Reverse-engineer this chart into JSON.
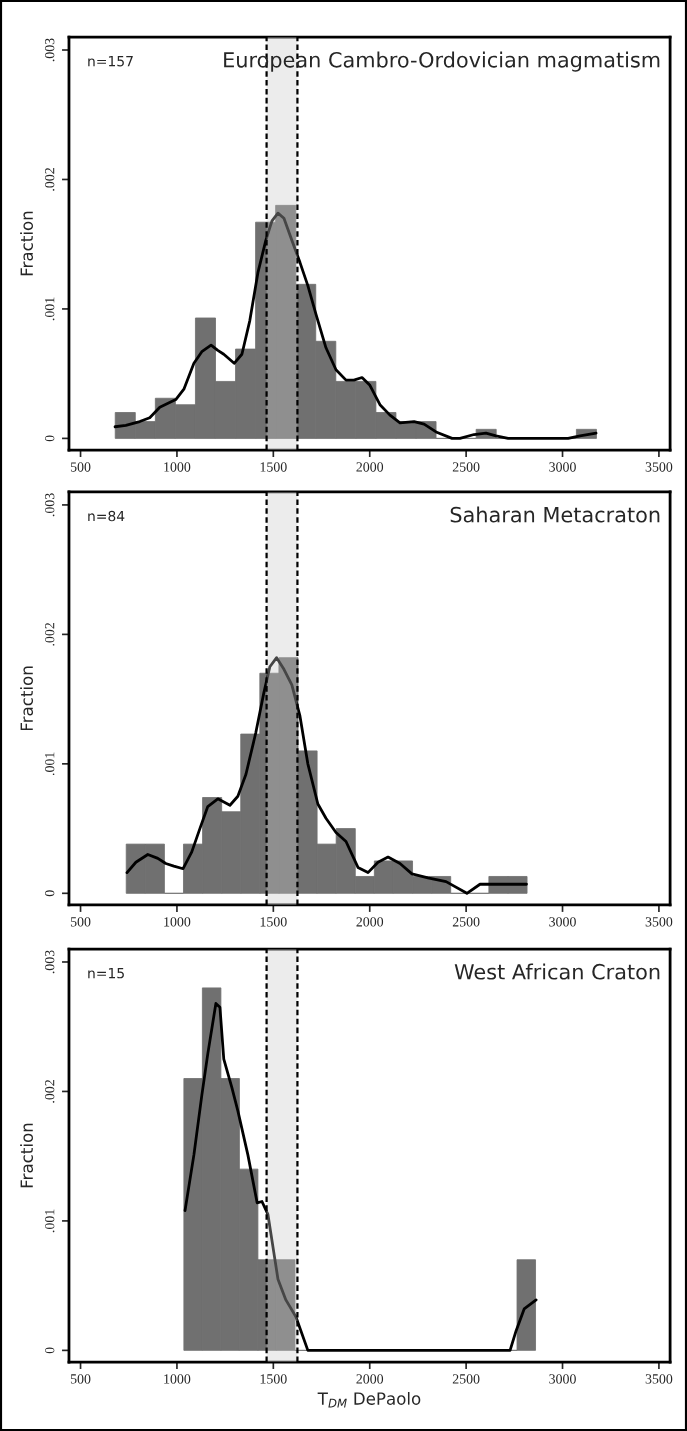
{
  "chart_data": [
    {
      "type": "histogram",
      "title": "European Cambro-Ordovician magmatism",
      "ylabel": "Fraction",
      "annotations": [
        "n=157"
      ],
      "series": [
        {
          "type": "histogram",
          "color": "#707070",
          "bins": [
            680,
            784,
            888,
            992,
            1096,
            1200,
            1304,
            1408,
            1512,
            1616,
            1720,
            1824,
            1928,
            2032,
            2136,
            2240,
            2344,
            2448,
            2552,
            2656,
            2760,
            2864,
            2968,
            3072,
            3176
          ],
          "values": [
            0.0002,
            0.00013,
            0.00031,
            0.00026,
            0.00093,
            0.00044,
            0.00069,
            0.00167,
            0.0018,
            0.00119,
            0.00075,
            0.00044,
            0.00044,
            0.0002,
            0.00013,
            0.00013,
            0,
            0,
            7e-05,
            0,
            0,
            0,
            0,
            7e-05
          ]
        },
        {
          "type": "line",
          "color": "#000000",
          "x": [
            679,
            735,
            807,
            859,
            911,
            994,
            1036,
            1088,
            1129,
            1177,
            1212,
            1243,
            1297,
            1337,
            1378,
            1420,
            1461,
            1493,
            1524,
            1555,
            1596,
            1638,
            1679,
            1721,
            1773,
            1825,
            1877,
            1918,
            1960,
            2001,
            2053,
            2105,
            2157,
            2230,
            2282,
            2344,
            2427,
            2468,
            2541,
            2603,
            2655,
            2718,
            3029,
            3091,
            3174
          ],
          "values": [
            9e-05,
            0.0001,
            0.00013,
            0.00016,
            0.00024,
            0.0003,
            0.00038,
            0.00058,
            0.00067,
            0.00072,
            0.00068,
            0.00065,
            0.00058,
            0.00065,
            0.00091,
            0.00128,
            0.00153,
            0.00168,
            0.00174,
            0.0017,
            0.00153,
            0.00136,
            0.00118,
            0.00096,
            0.0007,
            0.00053,
            0.00045,
            0.00045,
            0.00047,
            0.00041,
            0.00026,
            0.00018,
            0.00012,
            0.00013,
            0.00011,
            5e-05,
            0,
            0,
            3e-05,
            4e-05,
            2e-05,
            0,
            0,
            2e-05,
            4e-05
          ]
        }
      ],
      "bands": [
        {
          "axis": "x",
          "from": 1465,
          "to": 1625
        }
      ],
      "ref_lines": [
        {
          "axis": "x",
          "value": 1465,
          "line_style": "dashed"
        },
        {
          "axis": "x",
          "value": 1625,
          "line_style": "dashed"
        }
      ],
      "xlim": [
        440,
        3558
      ],
      "xticks": [
        500,
        1000,
        1500,
        2000,
        2500,
        3000,
        3500
      ],
      "ylim": [
        -9e-05,
        0.0031
      ],
      "yticks": [
        {
          "value": 0,
          "label": "0"
        },
        {
          "value": 0.001,
          "label": ".001"
        },
        {
          "value": 0.002,
          "label": ".002"
        },
        {
          "value": 0.003,
          "label": ".003"
        }
      ]
    },
    {
      "type": "histogram",
      "title": "Saharan Metacraton",
      "ylabel": "Fraction",
      "annotations": [
        "n=84"
      ],
      "series": [
        {
          "type": "histogram",
          "color": "#707070",
          "bins": [
            737,
            836,
            935,
            1034,
            1133,
            1232,
            1331,
            1430,
            1529,
            1628,
            1727,
            1826,
            1925,
            2024,
            2123,
            2222,
            2321,
            2420,
            2519,
            2618,
            2717,
            2816
          ],
          "values": [
            0.00038,
            0.00038,
            0,
            0.00038,
            0.00074,
            0.00063,
            0.00123,
            0.0017,
            0.00182,
            0.0011,
            0.00038,
            0.0005,
            0.00013,
            0.00025,
            0.00025,
            0.00013,
            0.00013,
            0,
            0,
            0.00013,
            0.00013
          ]
        },
        {
          "type": "line",
          "color": "#000000",
          "x": [
            741,
            787,
            849,
            901,
            942,
            984,
            1032,
            1077,
            1119,
            1160,
            1212,
            1275,
            1316,
            1358,
            1409,
            1451,
            1482,
            1517,
            1555,
            1596,
            1638,
            1679,
            1731,
            1773,
            1825,
            1877,
            1939,
            1991,
            2043,
            2095,
            2157,
            2219,
            2302,
            2396,
            2504,
            2572,
            2676,
            2813
          ],
          "values": [
            0.00016,
            0.00024,
            0.0003,
            0.00027,
            0.00023,
            0.00021,
            0.00019,
            0.00032,
            0.0005,
            0.00067,
            0.00073,
            0.00068,
            0.00075,
            0.00092,
            0.00124,
            0.00155,
            0.00175,
            0.00182,
            0.00173,
            0.00161,
            0.00137,
            0.001,
            0.00069,
            0.00058,
            0.00047,
            0.0004,
            0.0002,
            0.00016,
            0.00024,
            0.00028,
            0.00023,
            0.00015,
            0.00012,
            9e-05,
            0,
            7e-05,
            7e-05,
            7e-05
          ]
        }
      ],
      "bands": [
        {
          "axis": "x",
          "from": 1465,
          "to": 1625
        }
      ],
      "ref_lines": [
        {
          "axis": "x",
          "value": 1465,
          "line_style": "dashed"
        },
        {
          "axis": "x",
          "value": 1625,
          "line_style": "dashed"
        }
      ],
      "xlim": [
        440,
        3558
      ],
      "xticks": [
        500,
        1000,
        1500,
        2000,
        2500,
        3000,
        3500
      ],
      "ylim": [
        -9e-05,
        0.0031
      ],
      "yticks": [
        {
          "value": 0,
          "label": "0"
        },
        {
          "value": 0.001,
          "label": ".001"
        },
        {
          "value": 0.002,
          "label": ".002"
        },
        {
          "value": 0.003,
          "label": ".003"
        }
      ]
    },
    {
      "type": "histogram",
      "title": "West African Craton",
      "ylabel": "Fraction",
      "xlabel": "T$_{DM}$ DePaolo",
      "annotations": [
        "n=15"
      ],
      "series": [
        {
          "type": "histogram",
          "color": "#707070",
          "bins": [
            1036,
            1132,
            1228,
            1324,
            1420,
            1516,
            1612,
            1708,
            1804,
            1900,
            1996,
            2092,
            2188,
            2284,
            2380,
            2476,
            2572,
            2668,
            2764,
            2860
          ],
          "values": [
            0.0021,
            0.0028,
            0.0021,
            0.0014,
            0.0007,
            0.0007,
            0,
            0,
            0,
            0,
            0,
            0,
            0,
            0,
            0,
            0,
            0,
            0,
            0.0007
          ]
        },
        {
          "type": "line",
          "color": "#000000",
          "x": [
            1042,
            1088,
            1129,
            1160,
            1202,
            1223,
            1243,
            1285,
            1316,
            1368,
            1416,
            1441,
            1472,
            1524,
            1565,
            1617,
            1679,
            2728,
            2759,
            2801,
            2863
          ],
          "values": [
            0.00108,
            0.00151,
            0.00197,
            0.00229,
            0.00268,
            0.00265,
            0.00225,
            0.00203,
            0.00185,
            0.00151,
            0.00114,
            0.00115,
            0.00105,
            0.00055,
            0.00039,
            0.00026,
            0,
            0,
            0.00015,
            0.00032,
            0.00039
          ]
        }
      ],
      "bands": [
        {
          "axis": "x",
          "from": 1465,
          "to": 1625
        }
      ],
      "ref_lines": [
        {
          "axis": "x",
          "value": 1465,
          "line_style": "dashed"
        },
        {
          "axis": "x",
          "value": 1625,
          "line_style": "dashed"
        }
      ],
      "xlim": [
        440,
        3558
      ],
      "xticks": [
        500,
        1000,
        1500,
        2000,
        2500,
        3000,
        3500
      ],
      "ylim": [
        -9e-05,
        0.0031
      ],
      "yticks": [
        {
          "value": 0,
          "label": "0"
        },
        {
          "value": 0.001,
          "label": ".001"
        },
        {
          "value": 0.002,
          "label": ".002"
        },
        {
          "value": 0.003,
          "label": ".003"
        }
      ]
    }
  ]
}
